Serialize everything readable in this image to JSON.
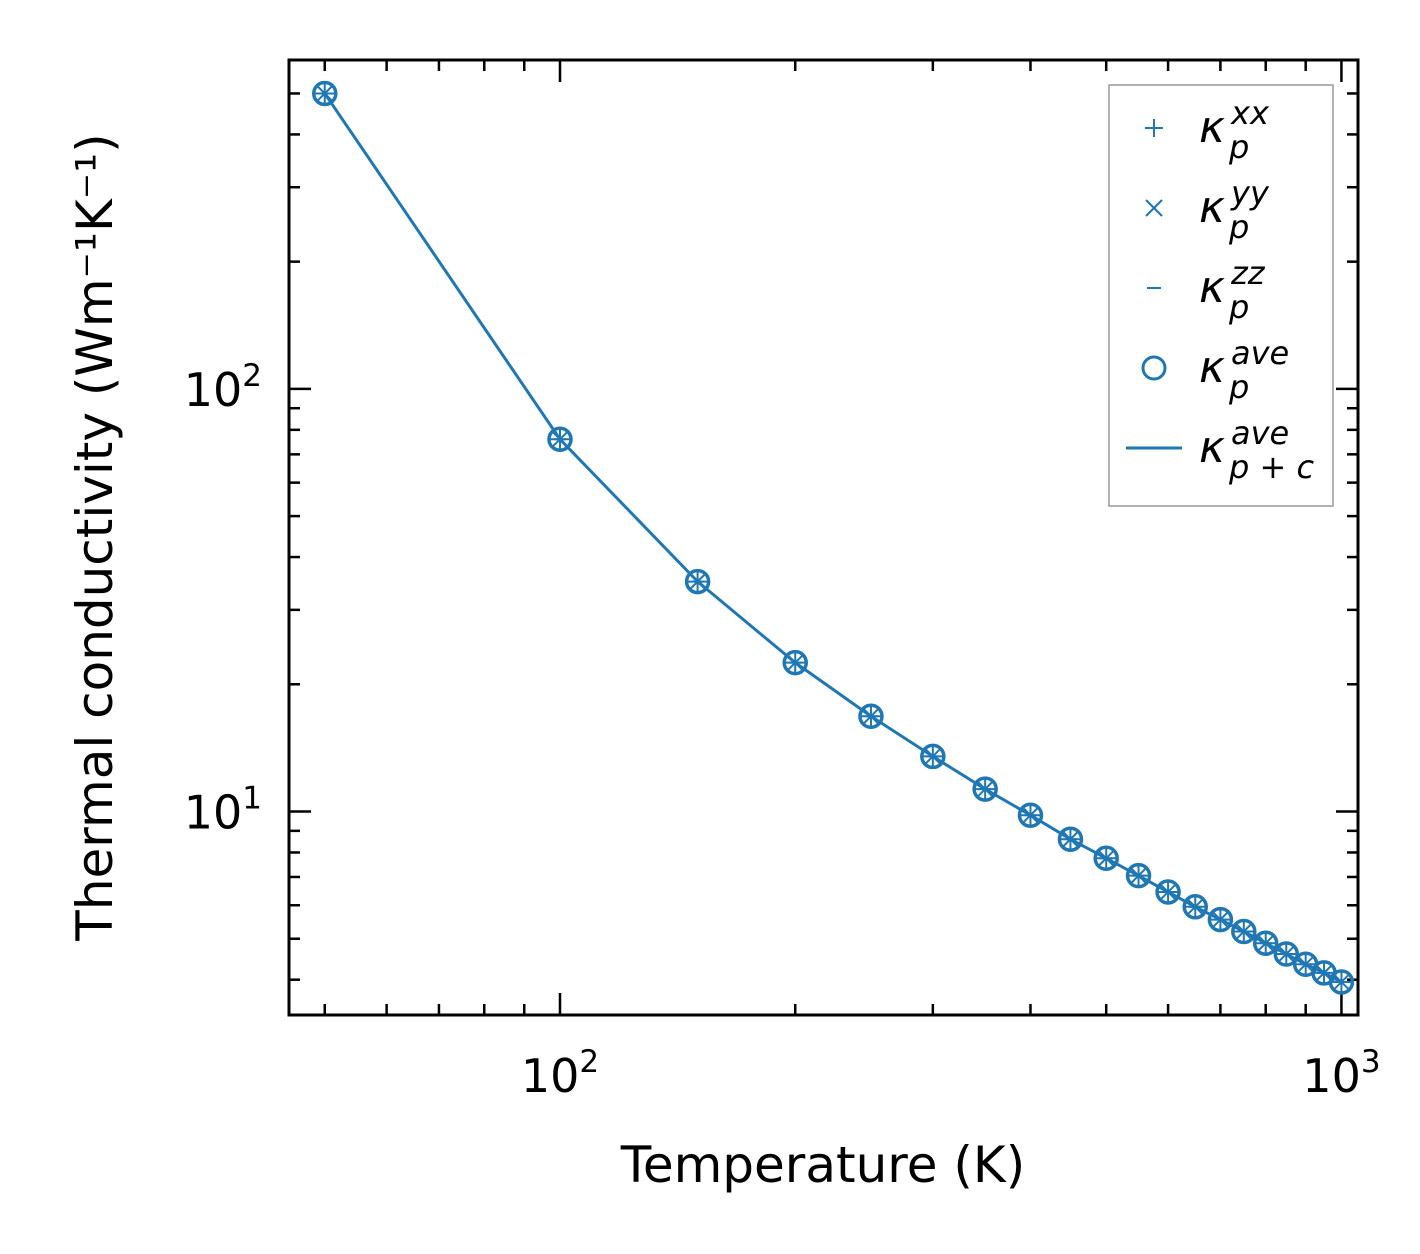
{
  "chart_data": {
    "type": "line",
    "xscale": "log",
    "yscale": "log",
    "xlim": [
      45,
      1050
    ],
    "ylim": [
      3.3,
      600
    ],
    "xlabel": "Temperature (K)",
    "ylabel": "Thermal conductivity (Wm⁻¹K⁻¹)",
    "x_ticks": [
      {
        "base": "10",
        "exp": "2"
      },
      {
        "base": "10",
        "exp": "3"
      }
    ],
    "y_ticks": [
      {
        "base": "10",
        "exp": "1"
      },
      {
        "base": "10",
        "exp": "2"
      }
    ],
    "x": [
      50,
      100,
      150,
      200,
      250,
      300,
      350,
      400,
      450,
      500,
      550,
      600,
      650,
      700,
      750,
      800,
      850,
      900,
      950,
      1000
    ],
    "series": [
      {
        "name": "κp^xx",
        "marker": "+",
        "values": [
          500,
          76,
          35,
          22.5,
          16.8,
          13.5,
          11.3,
          9.8,
          8.6,
          7.75,
          7.05,
          6.45,
          5.95,
          5.55,
          5.2,
          4.88,
          4.6,
          4.35,
          4.15,
          3.95
        ]
      },
      {
        "name": "κp^yy",
        "marker": "x",
        "values": [
          500,
          76,
          35,
          22.5,
          16.8,
          13.5,
          11.3,
          9.8,
          8.6,
          7.75,
          7.05,
          6.45,
          5.95,
          5.55,
          5.2,
          4.88,
          4.6,
          4.35,
          4.15,
          3.95
        ]
      },
      {
        "name": "κp^zz",
        "marker": "_",
        "values": [
          500,
          76,
          35,
          22.5,
          16.8,
          13.5,
          11.3,
          9.8,
          8.6,
          7.75,
          7.05,
          6.45,
          5.95,
          5.55,
          5.2,
          4.88,
          4.6,
          4.35,
          4.15,
          3.95
        ]
      },
      {
        "name": "κp^ave",
        "marker": "o",
        "values": [
          500,
          76,
          35,
          22.5,
          16.8,
          13.5,
          11.3,
          9.8,
          8.6,
          7.75,
          7.05,
          6.45,
          5.95,
          5.55,
          5.2,
          4.88,
          4.6,
          4.35,
          4.15,
          3.95
        ]
      },
      {
        "name": "κp+c^ave",
        "marker": "line",
        "values": [
          500,
          76,
          35,
          22.5,
          16.8,
          13.5,
          11.3,
          9.8,
          8.6,
          7.75,
          7.05,
          6.45,
          5.95,
          5.55,
          5.2,
          4.88,
          4.6,
          4.35,
          4.15,
          3.95
        ]
      }
    ],
    "legend": {
      "position": "top-right",
      "entries": [
        {
          "symbol": "+",
          "main": "κ",
          "sup": "xx",
          "sub": "p"
        },
        {
          "symbol": "×",
          "main": "κ",
          "sup": "yy",
          "sub": "p"
        },
        {
          "symbol": "–",
          "main": "κ",
          "sup": "zz",
          "sub": "p"
        },
        {
          "symbol": "○",
          "main": "κ",
          "sup": "ave",
          "sub": "p"
        },
        {
          "symbol": "—",
          "main": "κ",
          "sup": "ave",
          "sub": "p + c"
        }
      ]
    },
    "colors": {
      "series": "#1f77b4",
      "axis": "#000000",
      "legend_border": "#999999"
    }
  }
}
